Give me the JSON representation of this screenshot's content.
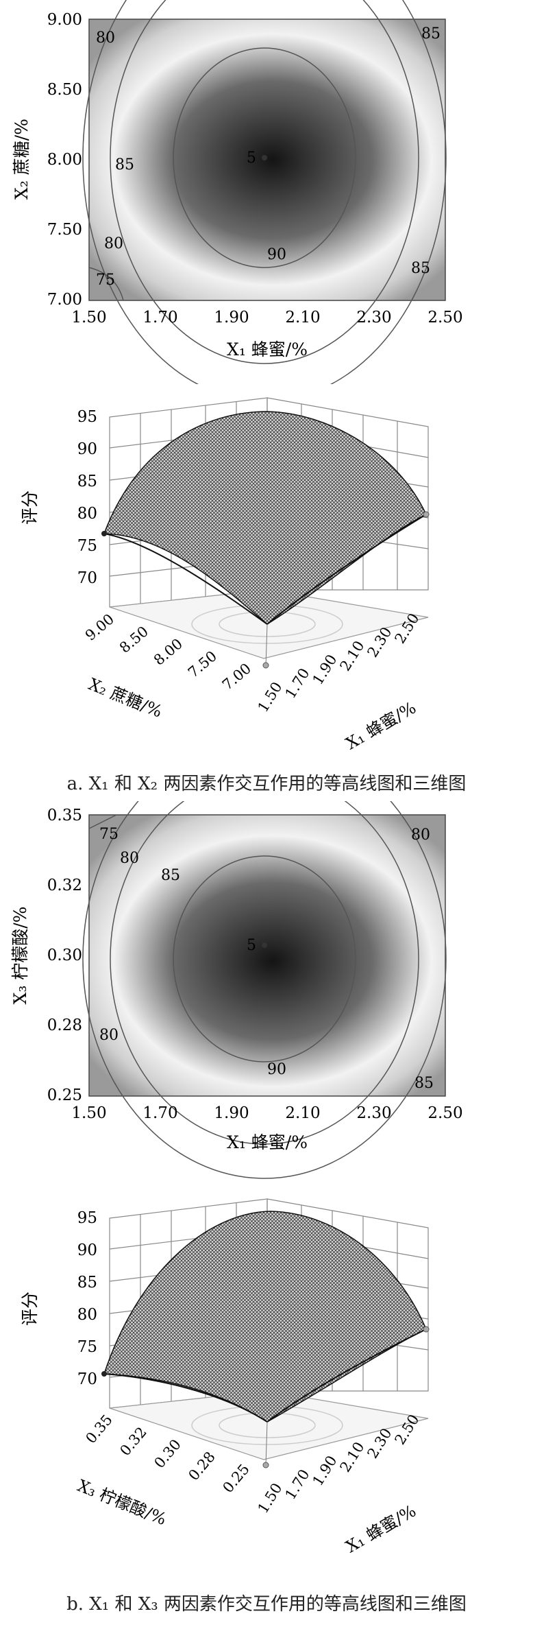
{
  "figure_a": {
    "contour": {
      "xlabel": "X₁ 蜂蜜/%",
      "ylabel": "X₂ 蔗糖/%",
      "x_ticks": [
        "1.50",
        "1.70",
        "1.90",
        "2.10",
        "2.30",
        "2.50"
      ],
      "y_ticks": [
        "9.00",
        "8.50",
        "8.00",
        "7.50",
        "7.00"
      ],
      "contour_labels": [
        "80",
        "85",
        "85",
        "80",
        "75",
        "90",
        "85"
      ],
      "center_label": "5"
    },
    "surface": {
      "zlabel": "评分",
      "z_ticks": [
        "95",
        "90",
        "85",
        "80",
        "75",
        "70"
      ],
      "left_axis_label": "X₂ 蔗糖/%",
      "left_ticks": [
        "9.00",
        "8.50",
        "8.00",
        "7.50",
        "7.00"
      ],
      "right_axis_label": "X₁ 蜂蜜/%",
      "right_ticks": [
        "1.50",
        "1.70",
        "1.90",
        "2.10",
        "2.30",
        "2.50"
      ]
    },
    "caption": "a. X₁ 和 X₂ 两因素作交互作用的等高线图和三维图"
  },
  "figure_b": {
    "contour": {
      "xlabel": "X₁ 蜂蜜/%",
      "ylabel": "X₃ 柠檬酸/%",
      "x_ticks": [
        "1.50",
        "1.70",
        "1.90",
        "2.10",
        "2.30",
        "2.50"
      ],
      "y_ticks": [
        "0.35",
        "0.32",
        "0.30",
        "0.28",
        "0.25"
      ],
      "contour_labels": [
        "75",
        "80",
        "85",
        "80",
        "80",
        "90",
        "85"
      ],
      "center_label": "5"
    },
    "surface": {
      "zlabel": "评分",
      "z_ticks": [
        "95",
        "90",
        "85",
        "80",
        "75",
        "70"
      ],
      "left_axis_label": "X₃ 柠檬酸/%",
      "left_ticks": [
        "0.35",
        "0.32",
        "0.30",
        "0.28",
        "0.25"
      ],
      "right_axis_label": "X₁ 蜂蜜/%",
      "right_ticks": [
        "1.50",
        "1.70",
        "1.90",
        "2.10",
        "2.30",
        "2.50"
      ]
    },
    "caption": "b. X₁ 和 X₃ 两因素作交互作用的等高线图和三维图"
  }
}
